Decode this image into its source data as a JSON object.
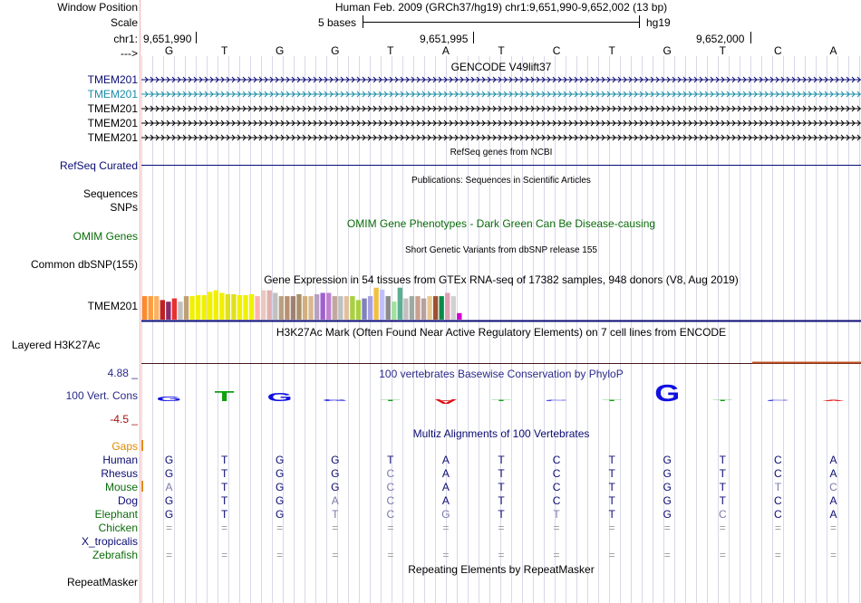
{
  "header": {
    "window_position_label": "Window Position",
    "scale_label": "Scale",
    "chrom_label": "chr1:",
    "arrow_label": "--->",
    "assembly_text": "Human Feb. 2009 (GRCh37/hg19)   chr1:9,651,990-9,652,002 (13 bp)",
    "scale_text": "5 bases",
    "scale_assembly": "hg19",
    "positions": [
      "9,651,990",
      "9,651,995",
      "9,652,000"
    ]
  },
  "sequence": [
    "G",
    "T",
    "G",
    "G",
    "T",
    "A",
    "T",
    "C",
    "T",
    "G",
    "T",
    "C",
    "A"
  ],
  "tracks": {
    "gencode": {
      "title": "GENCODE V49lift37",
      "genes": [
        "TMEM201",
        "TMEM201",
        "TMEM201",
        "TMEM201",
        "TMEM201"
      ],
      "colors": [
        "#0b0b74",
        "#1a8ca8",
        "#000000",
        "#000000",
        "#000000"
      ]
    },
    "refseq": {
      "title": "RefSeq genes from NCBI",
      "label": "RefSeq Curated",
      "color": "#0b0b74"
    },
    "publications": {
      "title": "Publications: Sequences in Scientific Articles",
      "labels": [
        "Sequences",
        "SNPs"
      ]
    },
    "omim": {
      "title": "OMIM Gene Phenotypes - Dark Green Can Be Disease-causing",
      "label": "OMIM Genes",
      "color": "#0a6b0a"
    },
    "dbsnp": {
      "title": "Short Genetic Variants from dbSNP release 155",
      "label": "Common dbSNP(155)"
    },
    "gtex": {
      "title": "Gene Expression in 54 tissues from GTEx RNA-seq of 17382 samples, 948 donors (V8, Aug 2019)",
      "label": "TMEM201",
      "bar_levels": [
        0.72,
        0.72,
        0.72,
        0.6,
        0.55,
        0.65,
        0.55,
        0.72,
        0.72,
        0.75,
        0.75,
        0.85,
        0.9,
        0.82,
        0.78,
        0.78,
        0.75,
        0.75,
        0.78,
        0.72,
        0.9,
        0.9,
        0.82,
        0.72,
        0.72,
        0.72,
        0.78,
        0.72,
        0.72,
        0.78,
        0.82,
        0.82,
        0.72,
        0.72,
        0.72,
        0.72,
        0.6,
        0.65,
        0.72,
        0.98,
        0.92,
        0.72,
        0.55,
        0.98,
        0.65,
        0.72,
        0.72,
        0.65,
        0.72,
        0.72,
        0.72,
        0.82,
        0.72,
        0.2
      ],
      "bar_colors": [
        "#ff8a2a",
        "#ff9c3c",
        "#ffb060",
        "#c02020",
        "#8a2a6a",
        "#e83030",
        "#c0c0c0",
        "#c0a070",
        "#f0f000",
        "#f0f000",
        "#f0f000",
        "#f0f000",
        "#f0f000",
        "#f0f000",
        "#e0e020",
        "#e0e020",
        "#f0f000",
        "#f0f000",
        "#f0f000",
        "#ffb0b0",
        "#e8c8c0",
        "#e0b0b0",
        "#c0c0c0",
        "#b8a080",
        "#b89070",
        "#a08070",
        "#a89068",
        "#d0b080",
        "#d8b890",
        "#b8a0c0",
        "#a060d0",
        "#c080d0",
        "#c0a8a0",
        "#c0c0c0",
        "#e0c0a0",
        "#a8d040",
        "#a8d040",
        "#8080c0",
        "#a8a0e0",
        "#f0c040",
        "#c0c0ff",
        "#8a8a8a",
        "#a0e0a0",
        "#5bb090",
        "#c0c0c0",
        "#a0a8a0",
        "#c8a090",
        "#b8a0a0",
        "#e8c890",
        "#a05030",
        "#0a8a4a",
        "#dca0b0",
        "#d0d0d0",
        "#d000d0"
      ]
    },
    "h3k27ac": {
      "title": "H3K27Ac Mark (Often Found Near Active Regulatory Elements) on 7 cell lines from ENCODE",
      "label": "Layered H3K27Ac"
    },
    "conservation": {
      "title": "100 vertebrates Basewise Conservation by PhyloP",
      "label": "100 Vert. Cons",
      "max_label": "4.88 _",
      "min_label": "-4.5 _",
      "title_color": "#2a2a8a",
      "scores": [
        0.3,
        0.6,
        0.5,
        0.1,
        0.05,
        -0.3,
        0.08,
        0.05,
        0.05,
        1.0,
        0.08,
        0.06,
        0.01
      ]
    },
    "multiz": {
      "title": "Multiz Alignments of 100 Vertebrates",
      "title_color": "#0b0b74",
      "gaps_label": "Gaps",
      "gaps_color": "#e08a00",
      "species": [
        {
          "name": "Human",
          "color": "#0b0b74",
          "bases": [
            "G",
            "T",
            "G",
            "G",
            "T",
            "A",
            "T",
            "C",
            "T",
            "G",
            "T",
            "C",
            "A"
          ]
        },
        {
          "name": "Rhesus",
          "color": "#0b0b74",
          "bases": [
            "G",
            "T",
            "G",
            "G",
            "C",
            "A",
            "T",
            "C",
            "T",
            "G",
            "T",
            "C",
            "A"
          ]
        },
        {
          "name": "Mouse",
          "color": "#0a6b0a",
          "bases": [
            "A",
            "T",
            "G",
            "G",
            "C",
            "A",
            "T",
            "C",
            "T",
            "G",
            "T",
            "T",
            "C"
          ]
        },
        {
          "name": "Dog",
          "color": "#0b0b74",
          "bases": [
            "G",
            "T",
            "G",
            "A",
            "C",
            "A",
            "T",
            "C",
            "T",
            "G",
            "T",
            "C",
            "A"
          ]
        },
        {
          "name": "Elephant",
          "color": "#0a6b0a",
          "bases": [
            "G",
            "T",
            "G",
            "T",
            "C",
            "G",
            "T",
            "T",
            "T",
            "G",
            "C",
            "C",
            "A"
          ]
        },
        {
          "name": "Chicken",
          "color": "#0a6b0a",
          "bases": [
            "=",
            "=",
            "=",
            "=",
            "=",
            "=",
            "=",
            "=",
            "=",
            "=",
            "=",
            "=",
            "="
          ]
        },
        {
          "name": "X_tropicalis",
          "color": "#0b0b74",
          "bases": [
            "",
            "",
            "",
            "",
            "",
            "",
            "",
            "",
            "",
            "",
            "",
            "",
            ""
          ]
        },
        {
          "name": "Zebrafish",
          "color": "#0a6b0a",
          "bases": [
            "=",
            "=",
            "=",
            "=",
            "=",
            "=",
            "=",
            "=",
            "=",
            "=",
            "=",
            "=",
            "="
          ]
        }
      ]
    },
    "repeatmasker": {
      "title": "Repeating Elements by RepeatMasker",
      "label": "RepeatMasker"
    }
  }
}
